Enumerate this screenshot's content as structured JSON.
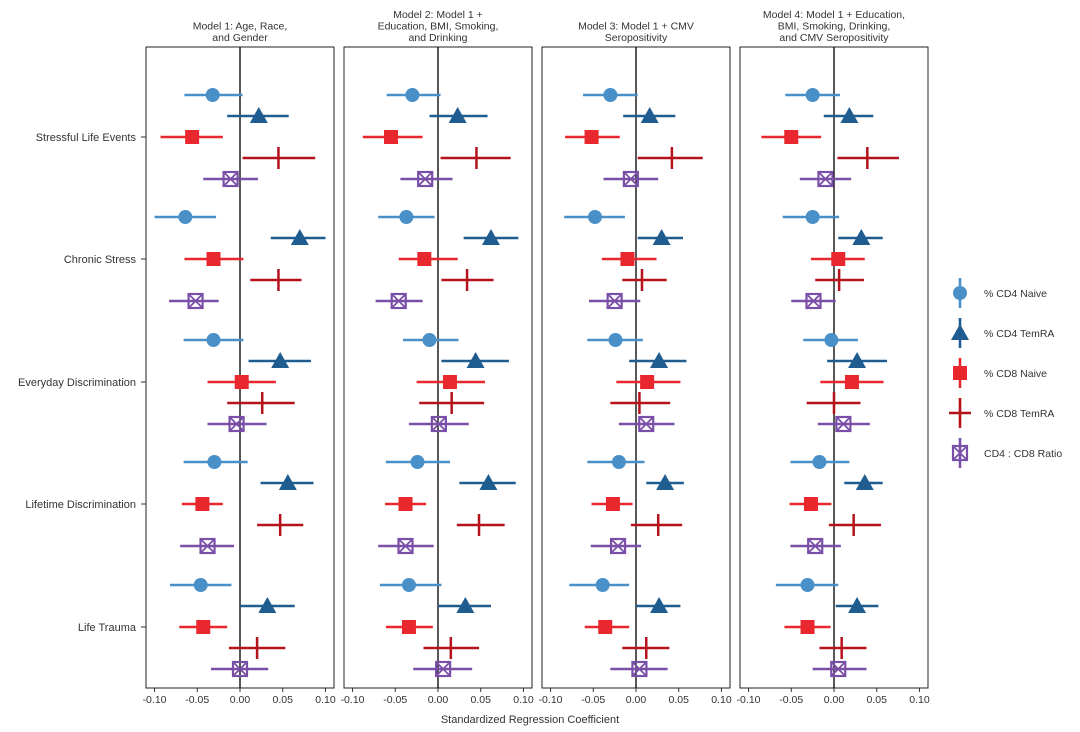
{
  "chart_data": {
    "type": "forest",
    "xlabel": "Standardized Regression Coefficient",
    "xlim": [
      -0.11,
      0.11
    ],
    "x_ticks": [
      "-0.10",
      "-0.05",
      "0.00",
      "0.05",
      "0.10"
    ],
    "outcomes": [
      "Stressful Life Events",
      "Chronic Stress",
      "Everyday Discrimination",
      "Lifetime Discrimination",
      "Life Trauma"
    ],
    "series": [
      {
        "name": "% CD4 Naive",
        "color": "#4A90C8",
        "marker": "circle"
      },
      {
        "name": "% CD4 TemRA",
        "color": "#1F5C8F",
        "marker": "triangle"
      },
      {
        "name": "% CD8 Naive",
        "color": "#E8282E",
        "marker": "square"
      },
      {
        "name": "% CD8 TemRA",
        "color": "#B5121B",
        "marker": "cross"
      },
      {
        "name": "CD4 : CD8 Ratio",
        "color": "#7A4FA8",
        "marker": "boxed-x"
      }
    ],
    "panels": [
      {
        "title": "Model 1: Age, Race,\nand Gender",
        "estimates": {
          "Stressful Life Events": [
            [
              -0.032,
              -0.065,
              0.003
            ],
            [
              0.022,
              -0.015,
              0.057
            ],
            [
              -0.056,
              -0.093,
              -0.02
            ],
            [
              0.045,
              0.003,
              0.088
            ],
            [
              -0.011,
              -0.043,
              0.021
            ]
          ],
          "Chronic Stress": [
            [
              -0.064,
              -0.1,
              -0.028
            ],
            [
              0.07,
              0.036,
              0.1
            ],
            [
              -0.031,
              -0.065,
              0.004
            ],
            [
              0.045,
              0.012,
              0.072
            ],
            [
              -0.052,
              -0.083,
              -0.025
            ]
          ],
          "Everyday Discrimination": [
            [
              -0.031,
              -0.066,
              0.004
            ],
            [
              0.047,
              0.01,
              0.083
            ],
            [
              0.002,
              -0.038,
              0.042
            ],
            [
              0.026,
              -0.015,
              0.064
            ],
            [
              -0.004,
              -0.038,
              0.031
            ]
          ],
          "Lifetime Discrimination": [
            [
              -0.03,
              -0.066,
              0.009
            ],
            [
              0.056,
              0.024,
              0.086
            ],
            [
              -0.044,
              -0.068,
              -0.02
            ],
            [
              0.047,
              0.02,
              0.074
            ],
            [
              -0.038,
              -0.07,
              -0.007
            ]
          ],
          "Life Trauma": [
            [
              -0.046,
              -0.082,
              -0.01
            ],
            [
              0.032,
              0.0,
              0.064
            ],
            [
              -0.043,
              -0.071,
              -0.015
            ],
            [
              0.02,
              -0.013,
              0.053
            ],
            [
              0.0,
              -0.034,
              0.033
            ]
          ]
        }
      },
      {
        "title": "Model 2: Model 1 +\nEducation, BMI, Smoking,\nand Drinking",
        "estimates": {
          "Stressful Life Events": [
            [
              -0.03,
              -0.06,
              0.003
            ],
            [
              0.023,
              -0.01,
              0.058
            ],
            [
              -0.055,
              -0.088,
              -0.018
            ],
            [
              0.045,
              0.003,
              0.085
            ],
            [
              -0.015,
              -0.044,
              0.017
            ]
          ],
          "Chronic Stress": [
            [
              -0.037,
              -0.07,
              -0.004
            ],
            [
              0.062,
              0.03,
              0.094
            ],
            [
              -0.016,
              -0.046,
              0.023
            ],
            [
              0.034,
              0.004,
              0.065
            ],
            [
              -0.046,
              -0.073,
              -0.018
            ]
          ],
          "Everyday Discrimination": [
            [
              -0.01,
              -0.041,
              0.024
            ],
            [
              0.044,
              0.004,
              0.083
            ],
            [
              0.014,
              -0.025,
              0.055
            ],
            [
              0.016,
              -0.022,
              0.054
            ],
            [
              0.001,
              -0.034,
              0.036
            ]
          ],
          "Lifetime Discrimination": [
            [
              -0.024,
              -0.061,
              0.014
            ],
            [
              0.059,
              0.025,
              0.091
            ],
            [
              -0.038,
              -0.062,
              -0.014
            ],
            [
              0.048,
              0.022,
              0.078
            ],
            [
              -0.038,
              -0.07,
              -0.005
            ]
          ],
          "Life Trauma": [
            [
              -0.034,
              -0.068,
              0.004
            ],
            [
              0.032,
              0.0,
              0.062
            ],
            [
              -0.034,
              -0.061,
              -0.006
            ],
            [
              0.015,
              -0.017,
              0.048
            ],
            [
              0.006,
              -0.029,
              0.04
            ]
          ]
        }
      },
      {
        "title": "Model 3: Model 1 + CMV\nSeropositivity",
        "estimates": {
          "Stressful Life Events": [
            [
              -0.03,
              -0.062,
              0.002
            ],
            [
              0.016,
              -0.015,
              0.046
            ],
            [
              -0.052,
              -0.083,
              -0.019
            ],
            [
              0.042,
              0.002,
              0.078
            ],
            [
              -0.006,
              -0.038,
              0.026
            ]
          ],
          "Chronic Stress": [
            [
              -0.048,
              -0.084,
              -0.013
            ],
            [
              0.03,
              0.002,
              0.055
            ],
            [
              -0.01,
              -0.04,
              0.024
            ],
            [
              0.007,
              -0.016,
              0.036
            ],
            [
              -0.025,
              -0.055,
              0.005
            ]
          ],
          "Everyday Discrimination": [
            [
              -0.024,
              -0.057,
              0.008
            ],
            [
              0.027,
              -0.008,
              0.059
            ],
            [
              0.013,
              -0.023,
              0.052
            ],
            [
              0.004,
              -0.03,
              0.04
            ],
            [
              0.012,
              -0.02,
              0.045
            ]
          ],
          "Lifetime Discrimination": [
            [
              -0.02,
              -0.057,
              0.01
            ],
            [
              0.034,
              0.012,
              0.056
            ],
            [
              -0.027,
              -0.052,
              -0.004
            ],
            [
              0.026,
              -0.006,
              0.054
            ],
            [
              -0.021,
              -0.053,
              0.006
            ]
          ],
          "Life Trauma": [
            [
              -0.039,
              -0.078,
              -0.008
            ],
            [
              0.027,
              0.0,
              0.052
            ],
            [
              -0.036,
              -0.06,
              -0.008
            ],
            [
              0.012,
              -0.016,
              0.039
            ],
            [
              0.004,
              -0.03,
              0.037
            ]
          ]
        }
      },
      {
        "title": "Model 4: Model 1 + Education,\nBMI, Smoking, Drinking,\nand CMV Seropositivity",
        "estimates": {
          "Stressful Life Events": [
            [
              -0.025,
              -0.057,
              0.007
            ],
            [
              0.018,
              -0.012,
              0.046
            ],
            [
              -0.05,
              -0.085,
              -0.015
            ],
            [
              0.039,
              0.004,
              0.076
            ],
            [
              -0.01,
              -0.04,
              0.02
            ]
          ],
          "Chronic Stress": [
            [
              -0.025,
              -0.06,
              0.006
            ],
            [
              0.032,
              0.005,
              0.057
            ],
            [
              0.005,
              -0.027,
              0.036
            ],
            [
              0.006,
              -0.022,
              0.035
            ],
            [
              -0.024,
              -0.05,
              0.002
            ]
          ],
          "Everyday Discrimination": [
            [
              -0.003,
              -0.036,
              0.028
            ],
            [
              0.027,
              -0.008,
              0.062
            ],
            [
              0.021,
              -0.016,
              0.058
            ],
            [
              0.0,
              -0.032,
              0.031
            ],
            [
              0.011,
              -0.019,
              0.042
            ]
          ],
          "Lifetime Discrimination": [
            [
              -0.017,
              -0.051,
              0.018
            ],
            [
              0.036,
              0.012,
              0.057
            ],
            [
              -0.027,
              -0.052,
              -0.003
            ],
            [
              0.023,
              -0.006,
              0.055
            ],
            [
              -0.022,
              -0.051,
              0.008
            ]
          ],
          "Life Trauma": [
            [
              -0.031,
              -0.068,
              0.005
            ],
            [
              0.027,
              0.002,
              0.052
            ],
            [
              -0.031,
              -0.058,
              -0.004
            ],
            [
              0.009,
              -0.017,
              0.038
            ],
            [
              0.005,
              -0.025,
              0.038
            ]
          ]
        }
      }
    ]
  }
}
